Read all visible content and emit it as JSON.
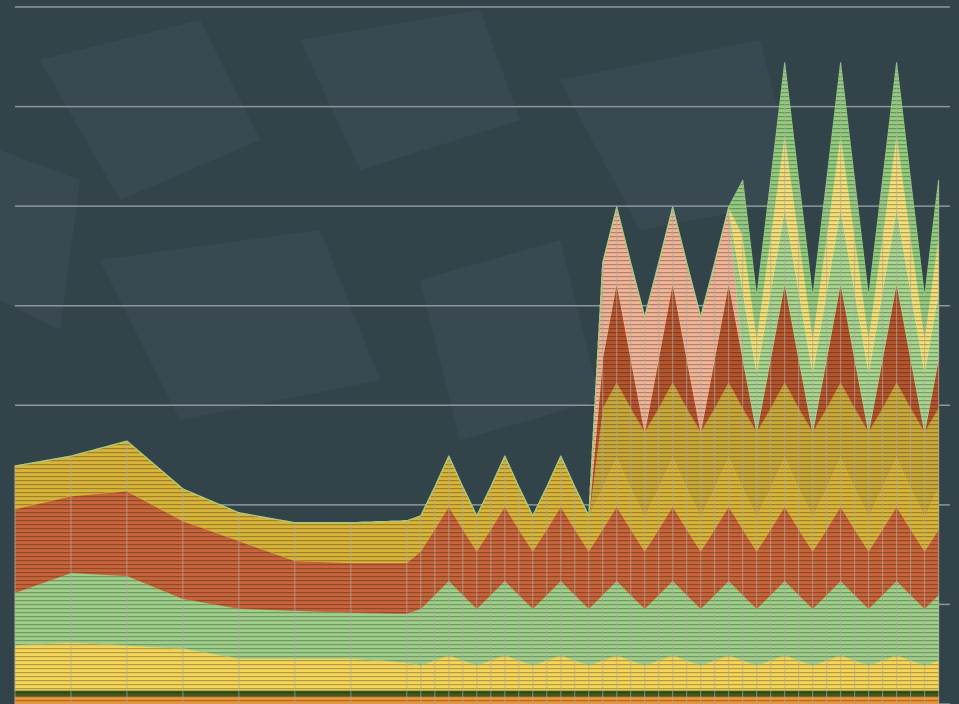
{
  "chart_data": {
    "type": "area",
    "stacked": true,
    "grid": true,
    "x": [
      0,
      1,
      2,
      3,
      4,
      5,
      6,
      7,
      7.25,
      7.5,
      7.75,
      8,
      8.25,
      8.5,
      8.75,
      9,
      9.25,
      9.5,
      9.75,
      10,
      10.25,
      10.5,
      10.75,
      11,
      11.25,
      11.5,
      11.75,
      12,
      12.25,
      12.5,
      12.75,
      13,
      13.25,
      13.5,
      13.75,
      14,
      14.25,
      14.5,
      14.75,
      15,
      15.25,
      15.5,
      15.75,
      16,
      16.25,
      16.5
    ],
    "xlim": [
      0,
      16.65
    ],
    "ylim": [
      0,
      700
    ],
    "yticks": [
      0,
      100,
      200,
      300,
      400,
      500,
      600,
      700
    ],
    "series": [
      {
        "color": "#e8953a",
        "values": [
          8,
          8,
          8,
          8,
          8,
          8,
          8,
          8,
          8,
          8,
          8,
          8,
          8,
          8,
          8,
          8,
          8,
          8,
          8,
          8,
          8,
          8,
          8,
          8,
          8,
          8,
          8,
          8,
          8,
          8,
          8,
          8,
          8,
          8,
          8,
          8,
          8,
          8,
          8,
          8,
          8,
          8,
          8,
          8,
          8,
          8
        ]
      },
      {
        "color": "#3f5a1f",
        "values": [
          6,
          6,
          6,
          6,
          6,
          6,
          6,
          6,
          6,
          6,
          6,
          6,
          6,
          6,
          6,
          6,
          6,
          6,
          6,
          6,
          6,
          6,
          6,
          6,
          6,
          6,
          6,
          6,
          6,
          6,
          6,
          6,
          6,
          6,
          6,
          6,
          6,
          6,
          6,
          6,
          6,
          6,
          6,
          6,
          6,
          6
        ]
      },
      {
        "color": "#f5d55a",
        "values": [
          45,
          48,
          45,
          42,
          32,
          32,
          32,
          28,
          25,
          30,
          35,
          30,
          25,
          30,
          35,
          30,
          25,
          30,
          35,
          30,
          25,
          30,
          35,
          30,
          25,
          30,
          35,
          30,
          25,
          30,
          35,
          30,
          25,
          30,
          35,
          30,
          25,
          30,
          35,
          30,
          25,
          30,
          35,
          30,
          25,
          30
        ]
      },
      {
        "color": "#9fd08a",
        "values": [
          53,
          70,
          70,
          50,
          50,
          48,
          46,
          49,
          57,
          66,
          75,
          66,
          57,
          66,
          75,
          66,
          57,
          66,
          75,
          66,
          57,
          66,
          75,
          66,
          57,
          66,
          75,
          66,
          57,
          66,
          75,
          66,
          57,
          66,
          75,
          66,
          57,
          66,
          75,
          66,
          57,
          66,
          75,
          66,
          57,
          66
        ]
      },
      {
        "color": "#c8643a",
        "values": [
          84,
          77,
          85,
          78,
          68,
          50,
          50,
          51,
          58,
          66,
          75,
          66,
          58,
          66,
          75,
          66,
          58,
          66,
          75,
          66,
          58,
          66,
          75,
          66,
          58,
          66,
          75,
          66,
          58,
          66,
          75,
          66,
          58,
          66,
          75,
          66,
          58,
          66,
          75,
          66,
          58,
          66,
          75,
          66,
          58,
          66
        ]
      },
      {
        "color": "#d9b43a",
        "values": [
          43,
          40,
          50,
          32,
          28,
          38,
          40,
          42,
          35,
          42,
          50,
          42,
          35,
          42,
          50,
          42,
          35,
          42,
          50,
          42,
          35,
          42,
          50,
          42,
          35,
          42,
          50,
          42,
          35,
          42,
          50,
          42,
          35,
          42,
          50,
          42,
          35,
          42,
          50,
          42,
          35,
          42,
          50,
          42,
          35,
          42
        ]
      },
      {
        "color": "#c9a73a",
        "values": [
          0,
          0,
          0,
          0,
          0,
          0,
          0,
          0,
          0,
          0,
          0,
          0,
          0,
          0,
          0,
          0,
          0,
          0,
          0,
          0,
          0,
          80,
          75,
          80,
          85,
          80,
          75,
          80,
          85,
          80,
          75,
          80,
          85,
          80,
          75,
          80,
          85,
          80,
          75,
          80,
          85,
          80,
          75,
          80,
          85,
          80
        ]
      },
      {
        "color": "#b5552e",
        "values": [
          0,
          0,
          0,
          0,
          0,
          0,
          0,
          0,
          0,
          0,
          0,
          0,
          0,
          0,
          0,
          0,
          0,
          0,
          0,
          0,
          0,
          50,
          100,
          50,
          0,
          50,
          100,
          50,
          0,
          50,
          100,
          50,
          0,
          50,
          100,
          50,
          0,
          50,
          100,
          50,
          0,
          50,
          100,
          50,
          0,
          50
        ]
      },
      {
        "color": "#f2b497",
        "values": [
          0,
          0,
          0,
          0,
          0,
          0,
          0,
          0,
          0,
          0,
          0,
          0,
          0,
          0,
          0,
          0,
          0,
          0,
          0,
          0,
          0,
          95,
          75,
          95,
          115,
          95,
          75,
          95,
          115,
          95,
          75,
          0,
          0,
          0,
          0,
          0,
          0,
          0,
          0,
          0,
          0,
          0,
          0,
          0,
          0,
          0
        ]
      },
      {
        "color": "#a8d68f",
        "values": [
          0,
          0,
          0,
          0,
          0,
          0,
          0,
          0,
          0,
          0,
          0,
          0,
          0,
          0,
          0,
          0,
          0,
          0,
          0,
          0,
          0,
          0,
          0,
          0,
          0,
          0,
          0,
          0,
          0,
          0,
          0,
          68,
          60,
          68,
          75,
          68,
          60,
          68,
          75,
          68,
          60,
          68,
          75,
          68,
          60,
          68
        ]
      },
      {
        "color": "#f5df7a",
        "values": [
          0,
          0,
          0,
          0,
          0,
          0,
          0,
          0,
          0,
          0,
          0,
          0,
          0,
          0,
          0,
          0,
          0,
          0,
          0,
          0,
          0,
          0,
          0,
          0,
          0,
          0,
          0,
          0,
          0,
          0,
          0,
          55,
          35,
          55,
          75,
          55,
          35,
          55,
          75,
          55,
          35,
          55,
          75,
          55,
          35,
          55
        ]
      },
      {
        "color": "#93cc7f",
        "values": [
          0,
          0,
          0,
          0,
          0,
          0,
          0,
          0,
          0,
          0,
          0,
          0,
          0,
          0,
          0,
          0,
          0,
          0,
          0,
          0,
          0,
          0,
          0,
          0,
          0,
          0,
          0,
          0,
          0,
          0,
          0,
          55,
          40,
          55,
          70,
          55,
          40,
          55,
          70,
          55,
          40,
          55,
          70,
          55,
          40,
          55
        ]
      }
    ]
  }
}
